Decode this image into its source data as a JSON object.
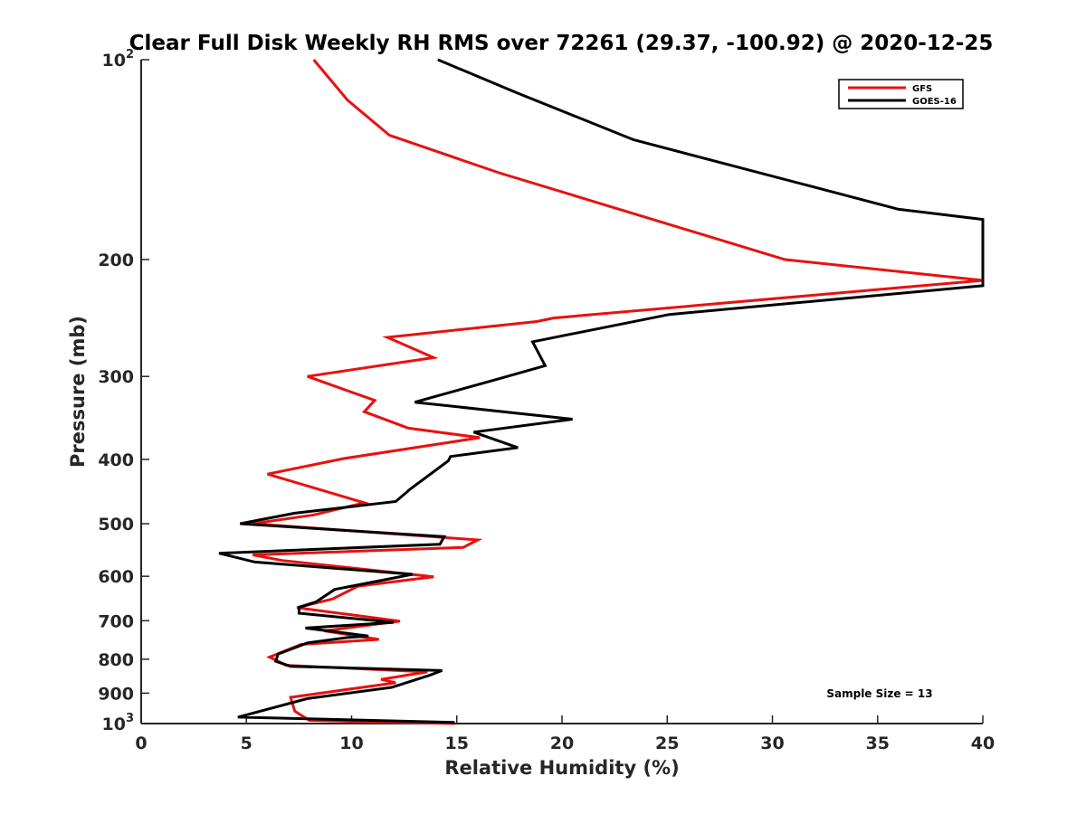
{
  "chart_data": {
    "type": "line",
    "title": "Clear Full Disk Weekly RH RMS over 72261 (29.37, -100.92) @ 2020-12-25",
    "xlabel": "Relative Humidity (%)",
    "ylabel": "Pressure (mb)",
    "xlim": [
      0,
      40
    ],
    "ylim": [
      100,
      1000
    ],
    "y_scale": "log",
    "y_reversed": true,
    "grid": false,
    "legend_position": "top-right",
    "x_ticks": [
      "0",
      "5",
      "10",
      "15",
      "20",
      "25",
      "30",
      "35",
      "40"
    ],
    "y_ticks": [
      {
        "value": 100,
        "base": "10",
        "exp": "2"
      },
      {
        "value": 200,
        "label": "200"
      },
      {
        "value": 300,
        "label": "300"
      },
      {
        "value": 400,
        "label": "400"
      },
      {
        "value": 500,
        "label": "500"
      },
      {
        "value": 600,
        "label": "600"
      },
      {
        "value": 700,
        "label": "700"
      },
      {
        "value": 800,
        "label": "800"
      },
      {
        "value": 900,
        "label": "900"
      },
      {
        "value": 1000,
        "base": "10",
        "exp": "3"
      }
    ],
    "annotation": "Sample Size = 13",
    "series": [
      {
        "name": "GFS",
        "color": "#e8110f",
        "points": [
          [
            8.2,
            100
          ],
          [
            9.8,
            115
          ],
          [
            11.8,
            130
          ],
          [
            17.0,
            148
          ],
          [
            30.6,
            200
          ],
          [
            40.0,
            215
          ],
          [
            19.6,
            245
          ],
          [
            18.8,
            248
          ],
          [
            11.7,
            262
          ],
          [
            13.9,
            281
          ],
          [
            7.9,
            300
          ],
          [
            11.1,
            326
          ],
          [
            10.6,
            339
          ],
          [
            12.7,
            359
          ],
          [
            16.1,
            371
          ],
          [
            9.6,
            399
          ],
          [
            6.0,
            421
          ],
          [
            10.6,
            465
          ],
          [
            8.2,
            485
          ],
          [
            5.3,
            500
          ],
          [
            16.0,
            529
          ],
          [
            15.3,
            543
          ],
          [
            5.3,
            557
          ],
          [
            6.7,
            568
          ],
          [
            13.9,
            601
          ],
          [
            10.3,
            621
          ],
          [
            9.1,
            649
          ],
          [
            7.4,
            669
          ],
          [
            12.3,
            701
          ],
          [
            8.7,
            725
          ],
          [
            11.3,
            747
          ],
          [
            7.6,
            760
          ],
          [
            6.1,
            794
          ],
          [
            6.9,
            817
          ],
          [
            13.6,
            836
          ],
          [
            11.4,
            858
          ],
          [
            12.1,
            868
          ],
          [
            7.1,
            913
          ],
          [
            7.3,
            958
          ],
          [
            8.0,
            989
          ],
          [
            14.9,
            1000
          ]
        ]
      },
      {
        "name": "GOES-16",
        "color": "#000000",
        "points": [
          [
            14.1,
            100
          ],
          [
            17.8,
            112
          ],
          [
            23.4,
            132
          ],
          [
            36.0,
            168
          ],
          [
            40.0,
            174
          ],
          [
            40.0,
            219
          ],
          [
            25.1,
            242
          ],
          [
            18.6,
            266
          ],
          [
            19.2,
            289
          ],
          [
            16.9,
            303
          ],
          [
            13.0,
            328
          ],
          [
            20.5,
            348
          ],
          [
            15.8,
            364
          ],
          [
            17.9,
            384
          ],
          [
            14.7,
            396
          ],
          [
            14.6,
            402
          ],
          [
            12.8,
            443
          ],
          [
            12.1,
            463
          ],
          [
            7.3,
            482
          ],
          [
            4.7,
            500
          ],
          [
            14.4,
            523
          ],
          [
            14.2,
            537
          ],
          [
            3.7,
            554
          ],
          [
            5.4,
            571
          ],
          [
            12.9,
            596
          ],
          [
            9.2,
            628
          ],
          [
            8.3,
            656
          ],
          [
            7.5,
            668
          ],
          [
            7.5,
            682
          ],
          [
            12.0,
            704
          ],
          [
            7.8,
            718
          ],
          [
            10.8,
            738
          ],
          [
            9.8,
            742
          ],
          [
            7.9,
            756
          ],
          [
            6.5,
            786
          ],
          [
            6.4,
            806
          ],
          [
            7.1,
            820
          ],
          [
            14.3,
            832
          ],
          [
            13.7,
            846
          ],
          [
            11.9,
            882
          ],
          [
            7.9,
            917
          ],
          [
            4.6,
            978
          ],
          [
            14.9,
            996
          ]
        ]
      }
    ]
  }
}
